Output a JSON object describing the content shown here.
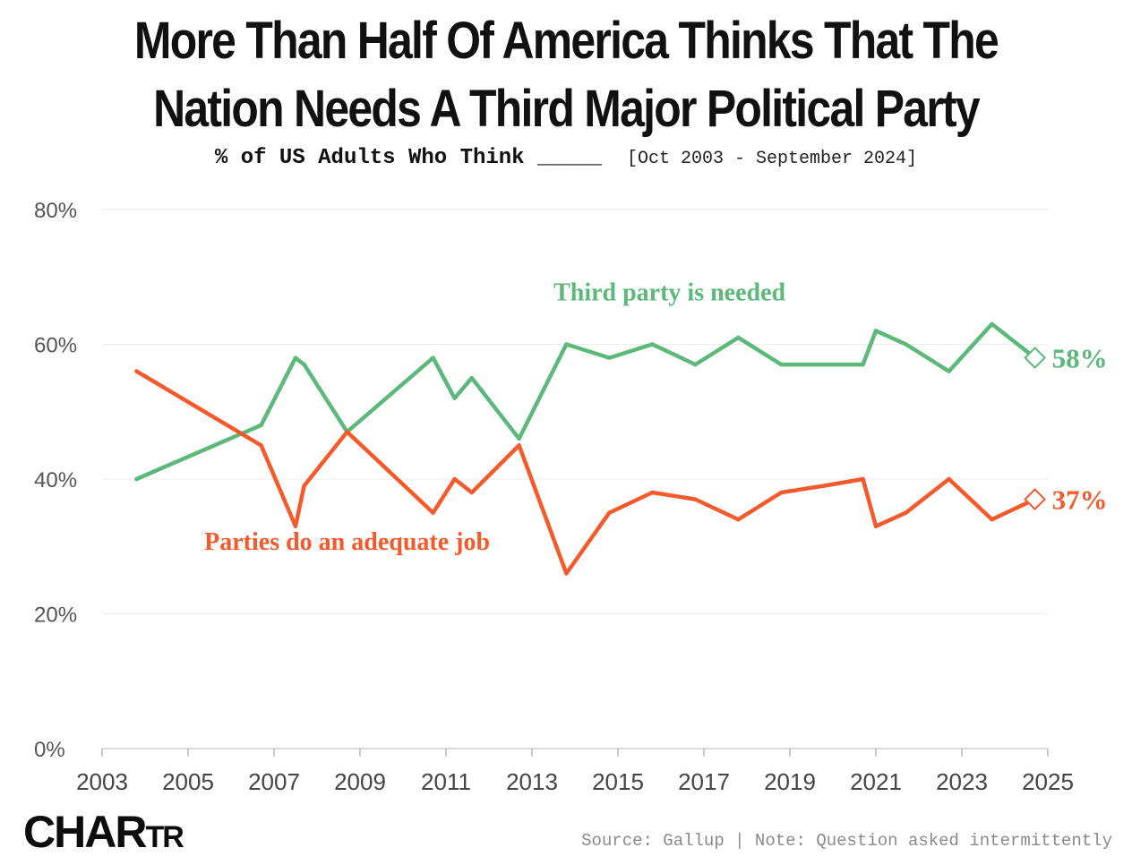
{
  "header": {
    "title_line1": "More Than Half Of America Thinks That The",
    "title_line2": "Nation Needs A Third Major Political Party",
    "subtitle": "% of US Adults Who Think _____",
    "date_range": "[Oct 2003 - September 2024]"
  },
  "footer": {
    "source": "Source: Gallup | Note: Question asked intermittently",
    "logo_big": "CHAR",
    "logo_small": "TR"
  },
  "chart_data": {
    "type": "line",
    "title": "More Than Half Of America Thinks That The Nation Needs A Third Major Political Party",
    "subtitle": "% of US Adults Who Think _____",
    "xlabel": "",
    "ylabel": "",
    "xlim": [
      2003,
      2025
    ],
    "ylim": [
      0,
      80
    ],
    "x_ticks": [
      2003,
      2005,
      2007,
      2009,
      2011,
      2013,
      2015,
      2017,
      2019,
      2021,
      2023,
      2025
    ],
    "y_ticks": [
      0,
      20,
      40,
      60,
      80
    ],
    "y_tick_labels": [
      "0%",
      "20%",
      "40%",
      "60%",
      "80%"
    ],
    "grid": true,
    "series": [
      {
        "name": "Third party is needed",
        "color": "#5db87c",
        "end_label": "58%",
        "points": [
          [
            2003.8,
            40
          ],
          [
            2006.7,
            48
          ],
          [
            2007.5,
            58
          ],
          [
            2007.7,
            57
          ],
          [
            2008.7,
            47
          ],
          [
            2010.7,
            58
          ],
          [
            2011.2,
            52
          ],
          [
            2011.6,
            55
          ],
          [
            2012.7,
            46
          ],
          [
            2013.8,
            60
          ],
          [
            2014.8,
            58
          ],
          [
            2015.8,
            60
          ],
          [
            2016.8,
            57
          ],
          [
            2017.8,
            61
          ],
          [
            2018.8,
            57
          ],
          [
            2019.8,
            57
          ],
          [
            2020.7,
            57
          ],
          [
            2021.0,
            62
          ],
          [
            2021.7,
            60
          ],
          [
            2022.7,
            56
          ],
          [
            2023.7,
            63
          ],
          [
            2024.7,
            58
          ]
        ]
      },
      {
        "name": "Parties do an adequate job",
        "color": "#f55a2c",
        "end_label": "37%",
        "points": [
          [
            2003.8,
            56
          ],
          [
            2006.7,
            45
          ],
          [
            2007.5,
            33
          ],
          [
            2007.7,
            39
          ],
          [
            2008.7,
            47
          ],
          [
            2010.7,
            35
          ],
          [
            2011.2,
            40
          ],
          [
            2011.6,
            38
          ],
          [
            2012.7,
            45
          ],
          [
            2013.8,
            26
          ],
          [
            2014.8,
            35
          ],
          [
            2015.8,
            38
          ],
          [
            2016.8,
            37
          ],
          [
            2017.8,
            34
          ],
          [
            2018.8,
            38
          ],
          [
            2019.8,
            39
          ],
          [
            2020.7,
            40
          ],
          [
            2021.0,
            33
          ],
          [
            2021.7,
            35
          ],
          [
            2022.7,
            40
          ],
          [
            2023.7,
            34
          ],
          [
            2024.7,
            37
          ]
        ]
      }
    ]
  }
}
